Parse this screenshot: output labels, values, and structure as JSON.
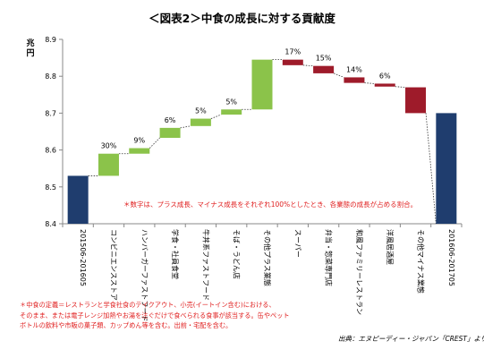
{
  "title": "＜図表2＞中食の成長に対する貢献度",
  "footnote": [
    "＊中食の定義＝レストランと学食社食のテイクアウト、小売(イートイン含む)における、",
    "そのまま、または電子レンジ加熱やお湯を注ぐだけで食べられる食事が該当する。缶やペット",
    "ボトルの飲料や市販の菓子類、カップめん等を含む。出前・宅配を含む。"
  ],
  "source": "出典：エヌピーディー・ジャパン「CREST」より",
  "colors": {
    "total": "#1f3d6e",
    "positive": "#8bc34a",
    "negative": "#9e1b2a",
    "annotation": "#e02020",
    "axis": "#888888"
  },
  "chart_data": {
    "type": "bar",
    "subtype": "waterfall",
    "ylabel": "兆円",
    "ylim": [
      8.4,
      8.9
    ],
    "yticks": [
      8.4,
      8.5,
      8.6,
      8.7,
      8.8,
      8.9
    ],
    "grid": false,
    "annotation": "＊数字は、プラス成長、マイナス成長をそれぞれ100%としたとき、各業態の成長が占める割合。",
    "categories": [
      "201506-201605",
      "コンビニエンスストア",
      "ハンバーガーファストフード",
      "学食・社員食堂",
      "牛丼系ファストフード",
      "そば・うどん店",
      "その他プラス業態",
      "スーパー",
      "弁当・惣菜専門店",
      "和風ファミリーレストラン",
      "洋風居酒屋",
      "その他マイナス業態",
      "201606-201705"
    ],
    "bars": [
      {
        "kind": "total",
        "start": 8.4,
        "end": 8.53,
        "label": ""
      },
      {
        "kind": "positive",
        "start": 8.53,
        "end": 8.59,
        "label": "30%"
      },
      {
        "kind": "positive",
        "start": 8.59,
        "end": 8.605,
        "label": "9%"
      },
      {
        "kind": "positive",
        "start": 8.633,
        "end": 8.66,
        "label": "6%"
      },
      {
        "kind": "positive",
        "start": 8.665,
        "end": 8.685,
        "label": "5%"
      },
      {
        "kind": "positive",
        "start": 8.696,
        "end": 8.71,
        "label": "5%"
      },
      {
        "kind": "positive",
        "start": 8.71,
        "end": 8.845,
        "label": ""
      },
      {
        "kind": "negative",
        "start": 8.845,
        "end": 8.83,
        "label": "17%"
      },
      {
        "kind": "negative",
        "start": 8.828,
        "end": 8.808,
        "label": "15%"
      },
      {
        "kind": "negative",
        "start": 8.797,
        "end": 8.782,
        "label": "14%"
      },
      {
        "kind": "negative",
        "start": 8.78,
        "end": 8.772,
        "label": "6%"
      },
      {
        "kind": "negative",
        "start": 8.77,
        "end": 8.7,
        "label": ""
      },
      {
        "kind": "total",
        "start": 8.4,
        "end": 8.7,
        "label": ""
      }
    ]
  }
}
